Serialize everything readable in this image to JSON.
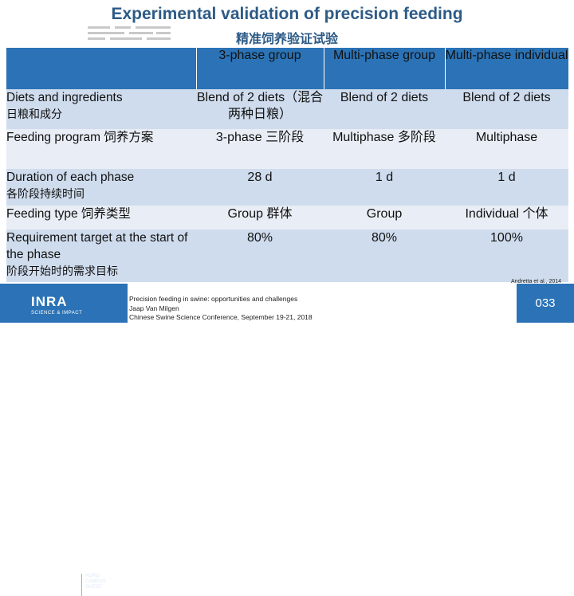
{
  "slide": {
    "title": "Experimental validation of precision feeding",
    "subtitle": "精准饲养验证试验"
  },
  "table": {
    "headers": [
      "3-phase group",
      "Multi-phase group",
      "Multi-phase individual"
    ],
    "rows": [
      {
        "label": "Diets and ingredients",
        "label_zh": "日粮和成分",
        "cells": [
          "Blend of 2 diets（混合两种日粮）",
          "Blend of 2 diets",
          "Blend of 2 diets"
        ]
      },
      {
        "label": "Feeding program 饲养方案",
        "label_zh": "",
        "cells": [
          "3-phase 三阶段",
          "Multiphase 多阶段",
          "Multiphase"
        ]
      },
      {
        "label": "Duration of each phase",
        "label_zh": "各阶段持续时间",
        "cells": [
          "28 d",
          "1 d",
          "1 d"
        ]
      },
      {
        "label": "Feeding type 饲养类型",
        "label_zh": "",
        "cells": [
          "Group 群体",
          "Group",
          "Individual 个体"
        ]
      },
      {
        "label": "Requirement target at the start of the phase",
        "label_zh": "阶段开始时的需求目标",
        "cells": [
          "80%",
          "80%",
          "100%"
        ]
      }
    ]
  },
  "footer": {
    "logo_text": "INRA",
    "logo_sub": "SCIENCE & IMPACT",
    "partner": "AGRO CAMPUS OUEST",
    "line1": "Precision feeding in swine: opportunities and challenges",
    "line2": "Jaap Van Milgen",
    "line3": "Chinese Swine Science Conference, September 19-21, 2018",
    "citation": "Andretta et al., 2014",
    "page": "033"
  },
  "colors": {
    "accent": "#2b73b6",
    "title": "#2d5b86",
    "row_light": "#cfdced",
    "row_lighter": "#e9eef6"
  }
}
